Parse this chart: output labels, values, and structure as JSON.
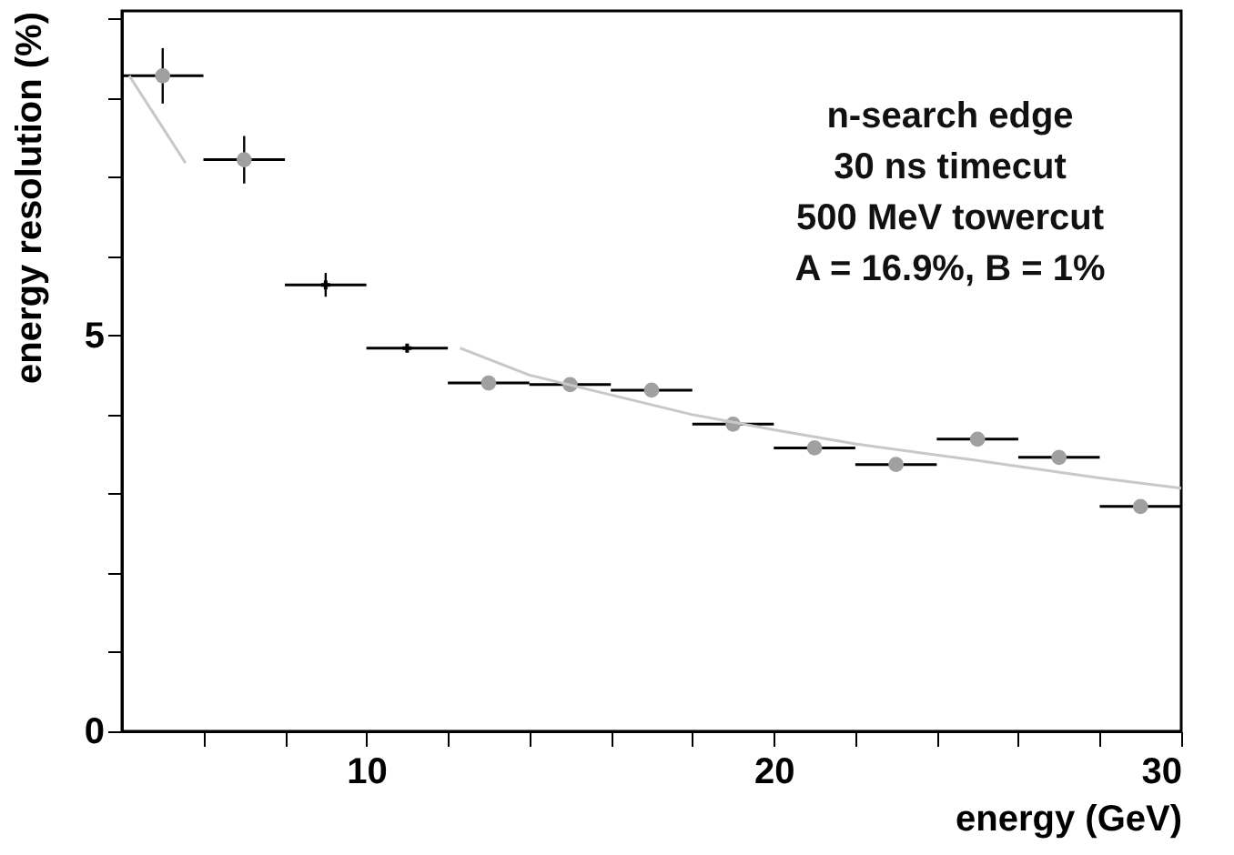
{
  "chart_data": {
    "type": "scatter",
    "xlabel": "energy (GeV)",
    "ylabel": "energy resolution (%)",
    "xlim": [
      4,
      30
    ],
    "ylim": [
      0,
      9.1
    ],
    "xticks": [
      {
        "value": 6,
        "label": null
      },
      {
        "value": 8,
        "label": null
      },
      10,
      {
        "value": 12,
        "label": null
      },
      {
        "value": 14,
        "label": null
      },
      {
        "value": 16,
        "label": null
      },
      {
        "value": 18,
        "label": null
      },
      20,
      {
        "value": 22,
        "label": null
      },
      {
        "value": 24,
        "label": null
      },
      {
        "value": 26,
        "label": null
      },
      {
        "value": 28,
        "label": null
      },
      30
    ],
    "yticks": [
      0,
      {
        "value": 1,
        "label": null
      },
      {
        "value": 2,
        "label": null
      },
      {
        "value": 3,
        "label": null
      },
      {
        "value": 4,
        "label": null
      },
      5,
      {
        "value": 6,
        "label": null
      },
      {
        "value": 7,
        "label": null
      },
      {
        "value": 8,
        "label": null
      },
      {
        "value": 9,
        "label": null
      }
    ],
    "grid": false,
    "marker": "circle",
    "annotations": [
      "n-search edge",
      "30 ns timecut",
      "500 MeV towercut",
      "A = 16.9%, B = 1%"
    ],
    "series": [
      {
        "color": "#a0a0a0",
        "x": [
          5,
          7,
          13,
          15,
          17,
          19,
          21,
          23,
          25,
          27,
          29
        ],
        "values": [
          8.28,
          7.22,
          4.4,
          4.38,
          4.31,
          3.88,
          3.58,
          3.37,
          3.69,
          3.46,
          2.84
        ],
        "errors": [
          0.35,
          0.3,
          null,
          null,
          null,
          null,
          null,
          null,
          null,
          null,
          null
        ],
        "xerrors": [
          1,
          1,
          1,
          1,
          1,
          1,
          1,
          1,
          1,
          1,
          1
        ]
      },
      {
        "color": "#000000",
        "marker": "cross",
        "x": [
          9,
          11
        ],
        "values": [
          5.64,
          4.84
        ],
        "errors": [
          0.15,
          null
        ],
        "xerrors": [
          1,
          1
        ]
      },
      {
        "type": "line",
        "marker": "none",
        "color": "#c8c8c8",
        "x": [
          4.18,
          5.56,
          8,
          12.3,
          14,
          16,
          18,
          20,
          22,
          25,
          28,
          30
        ],
        "values": [
          8.28,
          7.18,
          null,
          4.84,
          4.5,
          4.25,
          4.0,
          3.81,
          3.63,
          3.42,
          3.2,
          3.07
        ]
      }
    ]
  }
}
